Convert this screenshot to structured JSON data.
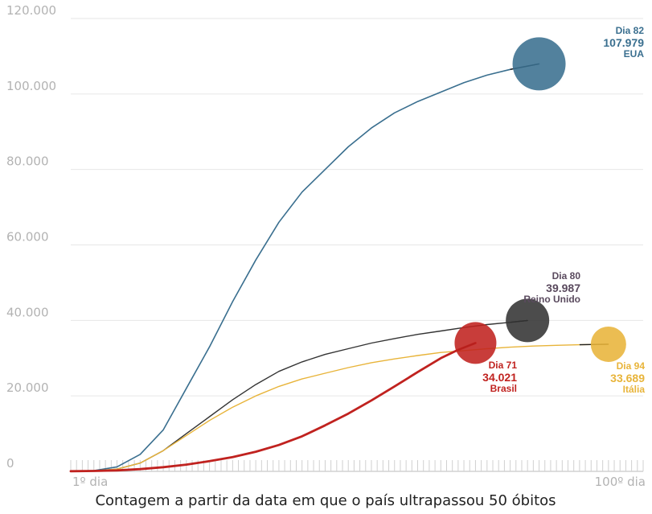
{
  "chart_data": {
    "type": "line",
    "title": "",
    "xlabel": "Contagem a partir da data em que o país ultrapassou 50 óbitos",
    "ylabel": "",
    "x_tick_labels": [
      "1º dia",
      "100º dia"
    ],
    "xlim": [
      1,
      100
    ],
    "ylim": [
      0,
      120000
    ],
    "y_ticks": [
      0,
      20000,
      40000,
      60000,
      80000,
      100000,
      120000
    ],
    "y_tick_labels": [
      "0",
      "20.000",
      "40.000",
      "60.000",
      "80.000",
      "100.000",
      "120.000"
    ],
    "grid": true,
    "series": [
      {
        "name": "EUA",
        "color": "#3a6f8f",
        "x": [
          1,
          5,
          9,
          13,
          17,
          21,
          25,
          29,
          33,
          37,
          41,
          45,
          49,
          53,
          57,
          61,
          65,
          69,
          73,
          77,
          82
        ],
        "y": [
          50,
          200,
          1200,
          4500,
          11000,
          22000,
          33000,
          45000,
          56000,
          66000,
          74000,
          80000,
          86000,
          91000,
          95000,
          98000,
          100500,
          103000,
          105000,
          106500,
          107979
        ],
        "end_label": {
          "day": "Dia 82",
          "value": "107.979",
          "country": "EUA"
        }
      },
      {
        "name": "Reino Unido",
        "color": "#333333",
        "x": [
          1,
          5,
          9,
          13,
          17,
          21,
          25,
          29,
          33,
          37,
          41,
          45,
          49,
          53,
          57,
          61,
          65,
          69,
          73,
          77,
          80
        ],
        "y": [
          50,
          150,
          600,
          2200,
          5500,
          10000,
          14500,
          19000,
          23000,
          26500,
          29000,
          31000,
          32500,
          34000,
          35200,
          36300,
          37200,
          38100,
          38900,
          39500,
          39987
        ],
        "end_label": {
          "day": "Dia 80",
          "value": "39.987",
          "country": "Reino Unido"
        }
      },
      {
        "name": "Itália",
        "color": "#e8b43a",
        "x": [
          1,
          5,
          9,
          13,
          17,
          21,
          25,
          29,
          33,
          37,
          41,
          45,
          49,
          53,
          57,
          61,
          65,
          69,
          73,
          77,
          81,
          85,
          89,
          94
        ],
        "y": [
          50,
          150,
          600,
          2200,
          5500,
          9500,
          13500,
          17000,
          20000,
          22500,
          24500,
          26000,
          27500,
          28800,
          29800,
          30700,
          31500,
          32000,
          32500,
          32900,
          33200,
          33400,
          33550,
          33689
        ],
        "end_label": {
          "day": "Dia 94",
          "value": "33.689",
          "country": "Itália"
        }
      },
      {
        "name": "Brasil",
        "color": "#c0221f",
        "x": [
          1,
          5,
          9,
          13,
          17,
          21,
          25,
          29,
          33,
          37,
          41,
          45,
          49,
          53,
          57,
          61,
          65,
          68,
          71
        ],
        "y": [
          50,
          100,
          250,
          600,
          1100,
          1800,
          2700,
          3800,
          5200,
          7000,
          9300,
          12200,
          15300,
          18800,
          22500,
          26300,
          30000,
          32200,
          34021
        ],
        "end_label": {
          "day": "Dia 71",
          "value": "34.021",
          "country": "Brasil"
        }
      }
    ]
  }
}
